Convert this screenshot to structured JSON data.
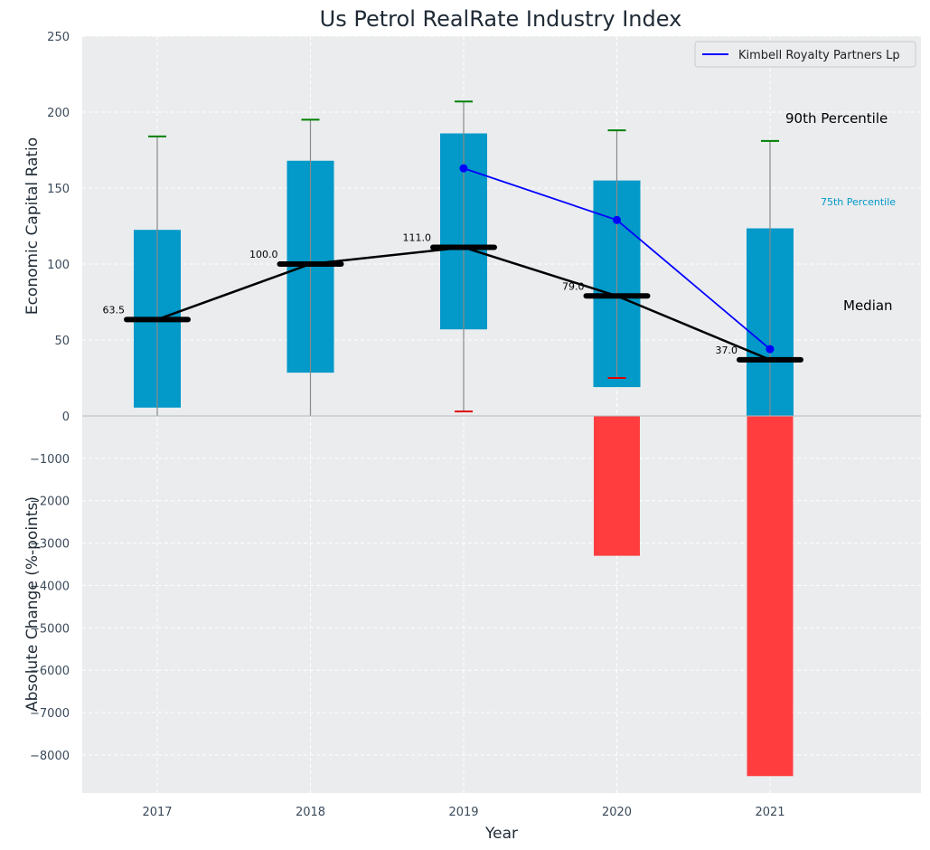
{
  "chart_data": {
    "type": "box",
    "title": "Us Petrol RealRate Industry Index",
    "xlabel": "Year",
    "ylabel_top": "Economic Capital Ratio",
    "ylabel_bottom": "Absolute Change (%-points)",
    "categories": [
      "2017",
      "2018",
      "2019",
      "2020",
      "2021"
    ],
    "top_panel": {
      "ylim": [
        0,
        250
      ],
      "yticks": [
        "0",
        "50",
        "100",
        "150",
        "200",
        "250"
      ],
      "boxes": [
        {
          "year": "2017",
          "p10": 0,
          "p25": 5.5,
          "median": 63.5,
          "p75": 122.5,
          "p90": 184
        },
        {
          "year": "2018",
          "p10": 0,
          "p25": 28.5,
          "median": 100.0,
          "p75": 168,
          "p90": 195
        },
        {
          "year": "2019",
          "p10": 3,
          "p25": 57,
          "median": 111.0,
          "p75": 186,
          "p90": 207
        },
        {
          "year": "2020",
          "p10": 25,
          "p25": 19,
          "median": 79.0,
          "p75": 155,
          "p90": 188
        },
        {
          "year": "2021",
          "p10": 0,
          "p25": 0,
          "median": 37.0,
          "p75": 123.5,
          "p90": 181
        }
      ],
      "median_labels": [
        "63.5",
        "100.0",
        "111.0",
        "79.0",
        "37.0"
      ],
      "company_series": {
        "name": "Kimbell Royalty Partners Lp",
        "x": [
          "2019",
          "2020",
          "2021"
        ],
        "values": [
          163,
          129,
          44
        ]
      },
      "annotations": {
        "p90": "90th Percentile",
        "p75": "75th Percentile",
        "median": "Median"
      },
      "legend_position": "top-right"
    },
    "bottom_panel": {
      "type": "bar",
      "ylim": [
        -8900,
        0
      ],
      "yticks": [
        "0",
        "−1000",
        "−2000",
        "−3000",
        "−4000",
        "−5000",
        "−6000",
        "−7000",
        "−8000"
      ],
      "values": [
        0,
        0,
        0,
        -3300,
        -8500
      ]
    },
    "colors": {
      "box": "#0399c8",
      "median": "#000000",
      "company": "#0000ff",
      "p90_cap": "#008000",
      "p10_cap": "#e00000",
      "change_bar": "#ff3d3f",
      "background": "#eaecee",
      "whisker": "#8a8a8a",
      "p75_annotation": "#0399c8"
    }
  }
}
